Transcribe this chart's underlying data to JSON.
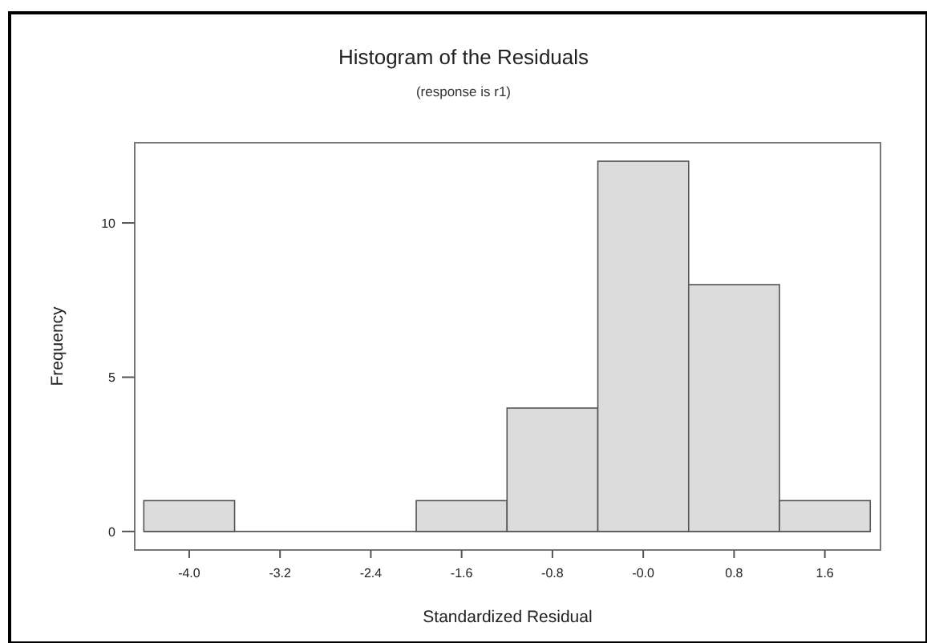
{
  "chart_data": {
    "type": "histogram",
    "title": "Histogram of the Residuals",
    "subtitle": "(response is r1)",
    "xlabel": "Standardized Residual",
    "ylabel": "Frequency",
    "bins": [
      -4.4,
      -3.6,
      -2.8,
      -2.0,
      -1.2,
      -0.4,
      0.4,
      1.2,
      2.0
    ],
    "values": [
      1,
      0,
      0,
      1,
      4,
      12,
      8,
      1
    ],
    "color": "#dcdcdc",
    "xlim": [
      -4.48,
      2.09
    ],
    "ylim": [
      -0.6,
      12.6
    ],
    "xticks": [
      {
        "value": -4,
        "label": "-4.0"
      },
      -3.2,
      -2.4,
      -1.6,
      -0.8,
      {
        "value": 0,
        "label": "-0.0"
      },
      0.8,
      1.6
    ],
    "yticks": [
      0,
      5,
      10
    ]
  }
}
